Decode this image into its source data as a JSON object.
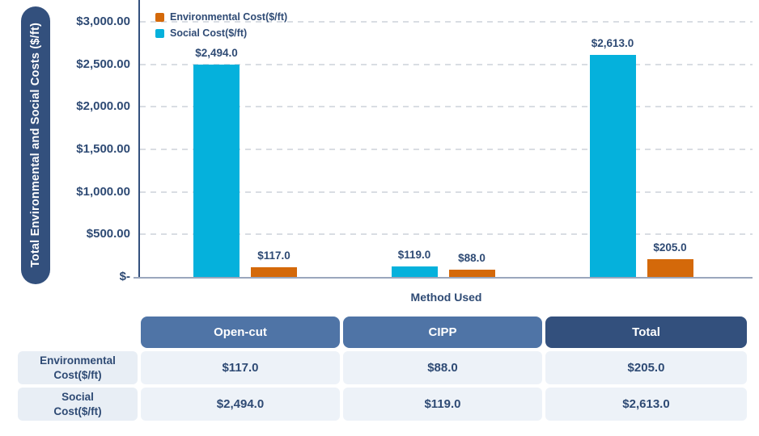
{
  "chart_data": {
    "type": "bar",
    "title": "",
    "xlabel": "Method Used",
    "ylabel": "Total Environmental and Social Costs ($/ft)",
    "categories": [
      "Open-cut",
      "CIPP",
      "Total"
    ],
    "series": [
      {
        "name": "Environmental Cost($/ft)",
        "color": "#d4690a",
        "values": [
          117.0,
          88.0,
          205.0
        ],
        "labels": [
          "$117.0",
          "$88.0",
          "$205.0"
        ]
      },
      {
        "name": "Social Cost($/ft)",
        "color": "#05b1dc",
        "values": [
          2494.0,
          119.0,
          2613.0
        ],
        "labels": [
          "$2,494.0",
          "$119.0",
          "$2,613.0"
        ]
      }
    ],
    "bar_display_order_per_category": [
      "Social Cost($/ft)",
      "Environmental Cost($/ft)"
    ],
    "y_ticks": [
      {
        "label": "$3,000.00",
        "value": 3000
      },
      {
        "label": "$2,500.00",
        "value": 2500
      },
      {
        "label": "$2,000.00",
        "value": 2000
      },
      {
        "label": "$1,500.00",
        "value": 1500
      },
      {
        "label": "$1,000.00",
        "value": 1000
      },
      {
        "label": "$500.00",
        "value": 500
      },
      {
        "label": "$-",
        "value": 0
      }
    ],
    "ylim": [
      0,
      3000
    ],
    "grid": "horizontal-dashed",
    "legend_position": "top-left"
  },
  "table": {
    "column_headers": [
      "Open-cut",
      "CIPP",
      "Total"
    ],
    "rows": [
      {
        "label": "Environmental Cost($/ft)",
        "label_lines": [
          "Environmental",
          "Cost($/ft)"
        ],
        "values": [
          "$117.0",
          "$88.0",
          "$205.0"
        ]
      },
      {
        "label": "Social Cost($/ft)",
        "label_lines": [
          "Social",
          "Cost($/ft)"
        ],
        "values": [
          "$2,494.0",
          "$119.0",
          "$2,613.0"
        ]
      }
    ]
  },
  "colors": {
    "navy_text": "#2e4a74",
    "axis_pill": "#33507d",
    "header_blue": "#4f74a6",
    "header_total": "#33507d",
    "cell_bg": "#edf2f8",
    "row_label_bg": "#e8eef5",
    "environmental": "#d4690a",
    "social": "#05b1dc",
    "gridline": "#d9dde3",
    "x_axis_line": "#9aa7bd",
    "y_axis_line": "#33507d"
  }
}
